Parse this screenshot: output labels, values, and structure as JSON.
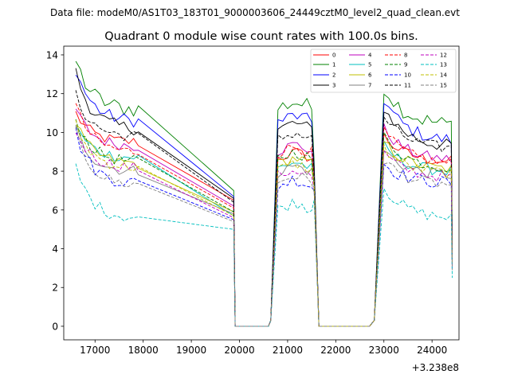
{
  "figure": {
    "suptitle": "Data file: modeM0/AS1T03_183T01_9000003606_24449cztM0_level2_quad_clean.evt"
  },
  "chart_data": {
    "type": "line",
    "title": "Quadrant 0 module wise count rates with 100.0s bins.",
    "xlabel": "",
    "ylabel": "",
    "x_offset_label": "+3.238e8",
    "xlim": [
      16350,
      24560
    ],
    "ylim": [
      -0.7,
      14.45
    ],
    "xticks": [
      17000,
      18000,
      19000,
      20000,
      21000,
      22000,
      23000,
      24000
    ],
    "yticks": [
      0,
      2,
      4,
      6,
      8,
      10,
      12,
      14
    ],
    "legend_loc": "upper-right",
    "legend_ncol": 4,
    "segments": [
      {
        "start": 16600,
        "count": 14
      },
      {
        "start": 20800,
        "count": 8
      },
      {
        "start": 23000,
        "count": 15
      }
    ],
    "gap_x": [
      19910,
      20000,
      20100,
      20200,
      20300,
      20400,
      20500,
      20600,
      20650,
      21650,
      21700,
      21800,
      21900,
      22000,
      22100,
      22200,
      22300,
      22400,
      22500,
      22600,
      22700,
      22800,
      22860
    ],
    "series": [
      {
        "name": "0",
        "color": "#ff0000",
        "dash": "",
        "base": [
          11.0,
          10.4,
          9.5,
          9.0,
          8.5
        ],
        "noise": 0.3,
        "end": 4.0
      },
      {
        "name": "1",
        "color": "#008000",
        "dash": "",
        "base": [
          13.7,
          12.2,
          11.2,
          11.6,
          10.4
        ],
        "noise": 0.45,
        "end": 4.5
      },
      {
        "name": "2",
        "color": "#0000ff",
        "dash": "",
        "base": [
          13.3,
          11.8,
          10.6,
          10.9,
          9.6
        ],
        "noise": 0.35,
        "end": 4.2
      },
      {
        "name": "3",
        "color": "#000000",
        "dash": "",
        "base": [
          13.1,
          11.4,
          10.2,
          10.5,
          9.3
        ],
        "noise": 0.35,
        "end": 4.1
      },
      {
        "name": "4",
        "color": "#bf00bf",
        "dash": "",
        "base": [
          11.2,
          10.3,
          9.3,
          9.4,
          8.6
        ],
        "noise": 0.3,
        "end": 3.7
      },
      {
        "name": "5",
        "color": "#00bfbf",
        "dash": "",
        "base": [
          10.3,
          9.4,
          8.7,
          8.5,
          8.0
        ],
        "noise": 0.3,
        "end": 3.2
      },
      {
        "name": "6",
        "color": "#bfbf00",
        "dash": "",
        "base": [
          10.5,
          9.3,
          8.4,
          8.7,
          8.1
        ],
        "noise": 0.3,
        "end": 3.4
      },
      {
        "name": "7",
        "color": "#808080",
        "dash": "",
        "base": [
          10.2,
          9.0,
          8.0,
          8.3,
          7.8
        ],
        "noise": 0.3,
        "end": 3.3
      },
      {
        "name": "8",
        "color": "#ff0000",
        "dash": "4,2",
        "base": [
          11.4,
          10.0,
          9.0,
          9.3,
          8.4
        ],
        "noise": 0.3,
        "end": 3.6
      },
      {
        "name": "9",
        "color": "#008000",
        "dash": "4,2",
        "base": [
          10.7,
          9.4,
          8.5,
          9.0,
          8.2
        ],
        "noise": 0.3,
        "end": 3.4
      },
      {
        "name": "10",
        "color": "#0000ff",
        "dash": "4,2",
        "base": [
          10.0,
          8.4,
          7.4,
          7.6,
          7.4
        ],
        "noise": 0.35,
        "end": 3.0
      },
      {
        "name": "11",
        "color": "#000000",
        "dash": "4,2",
        "base": [
          11.9,
          10.5,
          9.8,
          10.0,
          9.2
        ],
        "noise": 0.3,
        "end": 3.9
      },
      {
        "name": "12",
        "color": "#bf00bf",
        "dash": "4,2",
        "base": [
          10.1,
          8.9,
          8.2,
          8.1,
          7.7
        ],
        "noise": 0.3,
        "end": 3.1
      },
      {
        "name": "13",
        "color": "#00bfbf",
        "dash": "4,2",
        "base": [
          8.2,
          6.8,
          5.6,
          6.4,
          5.6
        ],
        "noise": 0.3,
        "end": 2.5
      },
      {
        "name": "14",
        "color": "#bfbf00",
        "dash": "4,2",
        "base": [
          10.4,
          9.1,
          8.2,
          8.4,
          7.9
        ],
        "noise": 0.3,
        "end": 3.2
      },
      {
        "name": "15",
        "color": "#808080",
        "dash": "4,2",
        "base": [
          10.0,
          8.4,
          7.3,
          7.8,
          7.3
        ],
        "noise": 0.3,
        "end": 2.9
      }
    ]
  }
}
